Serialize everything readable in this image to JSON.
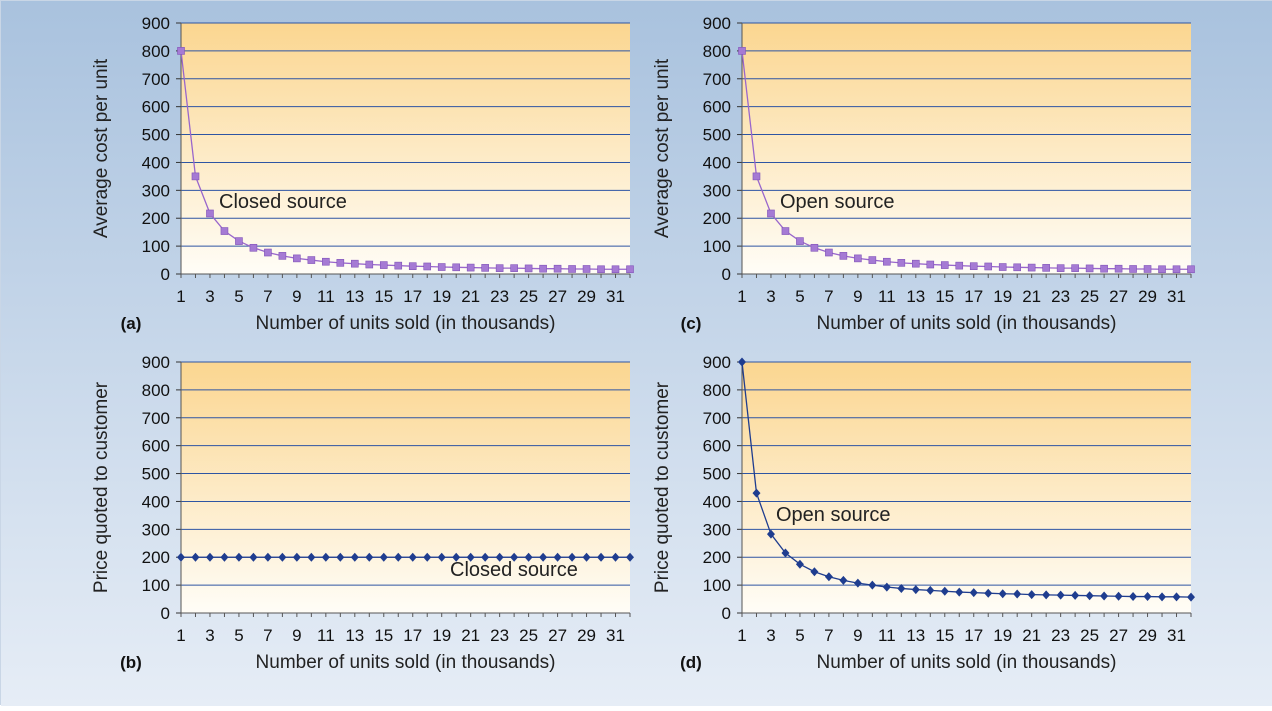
{
  "colors": {
    "background_top": "#a9c2de",
    "background_bottom": "#e6edf6",
    "plot_top": "#fbd690",
    "plot_bottom": "#fffdf7",
    "grid": "#2e55a3",
    "purple_series": "#9966cc",
    "purple_marker": "#a57ad4",
    "blue_series": "#1f3d8f"
  },
  "chart_data": [
    {
      "id": "a",
      "panel_label": "(a)",
      "type": "line",
      "xlabel": "Number of units sold (in thousands)",
      "ylabel": "Average cost per unit",
      "annotation": "Closed source",
      "ylim": [
        0,
        900
      ],
      "yticks": [
        0,
        100,
        200,
        300,
        400,
        500,
        600,
        700,
        800,
        900
      ],
      "xticks": [
        "1",
        "3",
        "5",
        "7",
        "9",
        "11",
        "13",
        "15",
        "17",
        "19",
        "21",
        "23",
        "25",
        "27",
        "29",
        "31"
      ],
      "grid": true,
      "marker": "square",
      "x": [
        1,
        2,
        3,
        4,
        5,
        6,
        7,
        8,
        9,
        10,
        11,
        12,
        13,
        14,
        15,
        16,
        17,
        18,
        19,
        20,
        21,
        22,
        23,
        24,
        25,
        26,
        27,
        28,
        29,
        30,
        31,
        32
      ],
      "series": [
        {
          "values": [
            800,
            350,
            217,
            154,
            118,
            94,
            77,
            65,
            56,
            50,
            44,
            40,
            37,
            34,
            32,
            30,
            28,
            27,
            25,
            24,
            23,
            22,
            21,
            21,
            20,
            19,
            19,
            18,
            18,
            17,
            17,
            17
          ]
        }
      ]
    },
    {
      "id": "c",
      "panel_label": "(c)",
      "type": "line",
      "xlabel": "Number of units sold (in thousands)",
      "ylabel": "Average cost per unit",
      "annotation": "Open source",
      "ylim": [
        0,
        900
      ],
      "yticks": [
        0,
        100,
        200,
        300,
        400,
        500,
        600,
        700,
        800,
        900
      ],
      "xticks": [
        "1",
        "3",
        "5",
        "7",
        "9",
        "11",
        "13",
        "15",
        "17",
        "19",
        "21",
        "23",
        "25",
        "27",
        "29",
        "31"
      ],
      "grid": true,
      "marker": "square",
      "x": [
        1,
        2,
        3,
        4,
        5,
        6,
        7,
        8,
        9,
        10,
        11,
        12,
        13,
        14,
        15,
        16,
        17,
        18,
        19,
        20,
        21,
        22,
        23,
        24,
        25,
        26,
        27,
        28,
        29,
        30,
        31,
        32
      ],
      "series": [
        {
          "values": [
            800,
            350,
            217,
            154,
            118,
            94,
            77,
            65,
            56,
            50,
            44,
            40,
            37,
            34,
            32,
            30,
            28,
            27,
            25,
            24,
            23,
            22,
            21,
            21,
            20,
            19,
            19,
            18,
            18,
            17,
            17,
            17
          ]
        }
      ]
    },
    {
      "id": "b",
      "panel_label": "(b)",
      "type": "line",
      "xlabel": "Number of units sold (in thousands)",
      "ylabel": "Price quoted to customer",
      "annotation": "Closed source",
      "ylim": [
        0,
        900
      ],
      "yticks": [
        0,
        100,
        200,
        300,
        400,
        500,
        600,
        700,
        800,
        900
      ],
      "xticks": [
        "1",
        "3",
        "5",
        "7",
        "9",
        "11",
        "13",
        "15",
        "17",
        "19",
        "21",
        "23",
        "25",
        "27",
        "29",
        "31"
      ],
      "grid": true,
      "marker": "diamond",
      "x": [
        1,
        2,
        3,
        4,
        5,
        6,
        7,
        8,
        9,
        10,
        11,
        12,
        13,
        14,
        15,
        16,
        17,
        18,
        19,
        20,
        21,
        22,
        23,
        24,
        25,
        26,
        27,
        28,
        29,
        30,
        31,
        32
      ],
      "series": [
        {
          "values": [
            200,
            200,
            200,
            200,
            200,
            200,
            200,
            200,
            200,
            200,
            200,
            200,
            200,
            200,
            200,
            200,
            200,
            200,
            200,
            200,
            200,
            200,
            200,
            200,
            200,
            200,
            200,
            200,
            200,
            200,
            200,
            200
          ]
        }
      ]
    },
    {
      "id": "d",
      "panel_label": "(d)",
      "type": "line",
      "xlabel": "Number of units sold (in thousands)",
      "ylabel": "Price quoted to customer",
      "annotation": "Open source",
      "ylim": [
        0,
        900
      ],
      "yticks": [
        0,
        100,
        200,
        300,
        400,
        500,
        600,
        700,
        800,
        900
      ],
      "xticks": [
        "1",
        "3",
        "5",
        "7",
        "9",
        "11",
        "13",
        "15",
        "17",
        "19",
        "21",
        "23",
        "25",
        "27",
        "29",
        "31"
      ],
      "grid": true,
      "marker": "diamond",
      "x": [
        1,
        2,
        3,
        4,
        5,
        6,
        7,
        8,
        9,
        10,
        11,
        12,
        13,
        14,
        15,
        16,
        17,
        18,
        19,
        20,
        21,
        22,
        23,
        24,
        25,
        26,
        27,
        28,
        29,
        30,
        31,
        32
      ],
      "series": [
        {
          "values": [
            900,
            430,
            283,
            215,
            175,
            148,
            130,
            117,
            107,
            100,
            93,
            88,
            84,
            81,
            78,
            75,
            73,
            71,
            69,
            68,
            66,
            65,
            64,
            63,
            62,
            61,
            60,
            59,
            59,
            58,
            58,
            57
          ]
        }
      ]
    }
  ]
}
